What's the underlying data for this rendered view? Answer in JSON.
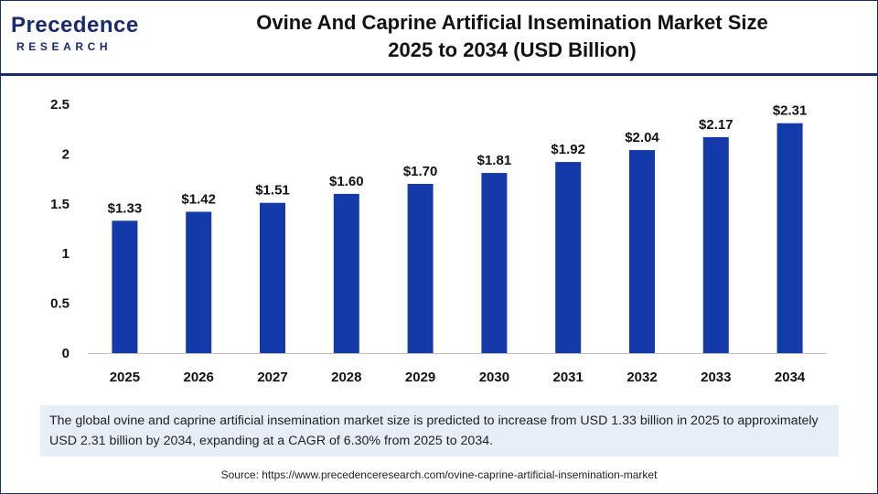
{
  "logo": {
    "brand": "Precedence",
    "sub": "RESEARCH"
  },
  "title_lines": [
    "Ovine And Caprine Artificial Insemination Market Size",
    "2025 to 2034 (USD Billion)"
  ],
  "colors": {
    "bar": "#1439a8",
    "navy": "#1b2a6b",
    "caption_bg": "#e8eef8"
  },
  "chart_data": {
    "type": "bar",
    "categories": [
      "2025",
      "2026",
      "2027",
      "2028",
      "2029",
      "2030",
      "2031",
      "2032",
      "2033",
      "2034"
    ],
    "values": [
      1.33,
      1.42,
      1.51,
      1.6,
      1.7,
      1.81,
      1.92,
      2.04,
      2.17,
      2.31
    ],
    "data_labels": [
      "$1.33",
      "$1.42",
      "$1.51",
      "$1.60",
      "$1.70",
      "$1.81",
      "$1.92",
      "$2.04",
      "$2.17",
      "$2.31"
    ],
    "yticks": [
      "0",
      "0.5",
      "1",
      "1.5",
      "2",
      "2.5"
    ],
    "ytick_values": [
      0,
      0.5,
      1,
      1.5,
      2,
      2.5
    ],
    "ylim": [
      0,
      2.5
    ],
    "grid": false,
    "legend": "none"
  },
  "caption": "The global ovine and caprine artificial insemination market size is predicted to increase from USD 1.33 billion in 2025 to approximately USD 2.31 billion by 2034, expanding at a CAGR of 6.30% from 2025 to 2034.",
  "source": "Source: https://www.precedenceresearch.com/ovine-caprine-artificial-insemination-market"
}
